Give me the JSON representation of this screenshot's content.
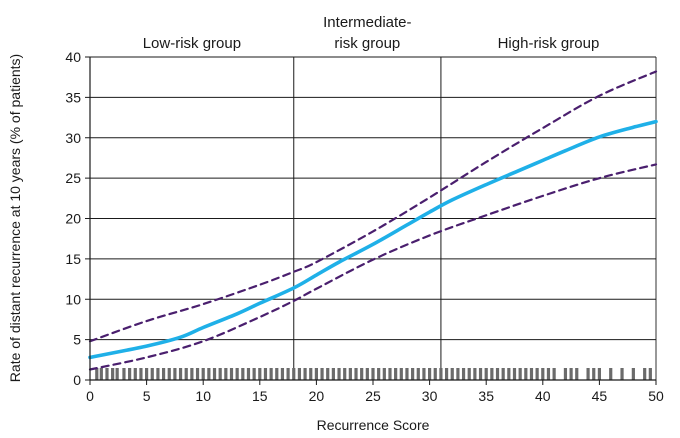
{
  "chart_data": {
    "type": "line",
    "xlabel": "Recurrence Score",
    "ylabel": "Rate of distant recurrence at 10 years (% of patients)",
    "xlim": [
      0,
      50
    ],
    "ylim": [
      0,
      40
    ],
    "x_ticks": [
      "0",
      "5",
      "10",
      "15",
      "20",
      "25",
      "30",
      "35",
      "40",
      "45",
      "50"
    ],
    "y_ticks": [
      "0",
      "5",
      "10",
      "15",
      "20",
      "25",
      "30",
      "35",
      "40"
    ],
    "grid": "horizontal",
    "group_boundaries": [
      18,
      31
    ],
    "groups": [
      {
        "lines": [
          "Low-risk group"
        ],
        "x_center": 9
      },
      {
        "lines": [
          "Intermediate-",
          "risk group"
        ],
        "x_center": 24.5
      },
      {
        "lines": [
          "High-risk group"
        ],
        "x_center": 40.5
      }
    ],
    "series": [
      {
        "style": "solid",
        "color": "#1fb0e8",
        "x": [
          0,
          5,
          8,
          10,
          13,
          15,
          18,
          20,
          22,
          25,
          28,
          30,
          32,
          35,
          38,
          40,
          42,
          45,
          48,
          50
        ],
        "values": [
          2.8,
          4.2,
          5.3,
          6.5,
          8.2,
          9.5,
          11.4,
          13.0,
          14.6,
          16.8,
          19.2,
          20.8,
          22.3,
          24.2,
          26.0,
          27.2,
          28.4,
          30.1,
          31.3,
          32.0
        ]
      },
      {
        "style": "dashed",
        "color": "#4a1f6e",
        "x": [
          0,
          5,
          10,
          15,
          18,
          20,
          25,
          30,
          35,
          40,
          45,
          50
        ],
        "values": [
          4.8,
          7.3,
          9.4,
          11.8,
          13.4,
          14.6,
          18.4,
          22.6,
          27.0,
          31.2,
          35.2,
          38.2
        ]
      },
      {
        "style": "dashed",
        "color": "#4a1f6e",
        "x": [
          0,
          5,
          10,
          15,
          18,
          20,
          25,
          30,
          35,
          40,
          45,
          50
        ],
        "values": [
          1.3,
          2.8,
          4.8,
          7.8,
          9.8,
          11.3,
          14.9,
          17.9,
          20.4,
          22.8,
          25.0,
          26.7
        ]
      }
    ],
    "rug": {
      "color": "#6b6b6b",
      "x": [
        0.6,
        1,
        1.5,
        2,
        2.4,
        3,
        3.5,
        4,
        4.5,
        5,
        5.5,
        6,
        6.5,
        7,
        7.5,
        8,
        8.5,
        9,
        9.5,
        10,
        10.5,
        11,
        11.5,
        12,
        12.5,
        13,
        13.5,
        14,
        14.5,
        15,
        15.5,
        16,
        16.5,
        17,
        17.5,
        18,
        18.5,
        19,
        19.5,
        20,
        20.5,
        21,
        21.5,
        22,
        22.5,
        23,
        23.5,
        24,
        24.5,
        25,
        25.5,
        26,
        26.5,
        27,
        27.5,
        28,
        28.5,
        29,
        29.5,
        30,
        30.5,
        31,
        31.5,
        32,
        32.5,
        33,
        33.5,
        34,
        34.5,
        35,
        35.5,
        36,
        36.5,
        37,
        37.5,
        38,
        38.5,
        39,
        39.5,
        40,
        40.5,
        41,
        42,
        42.5,
        43,
        44,
        44.5,
        45,
        46,
        47,
        48,
        49,
        49.5
      ]
    }
  }
}
